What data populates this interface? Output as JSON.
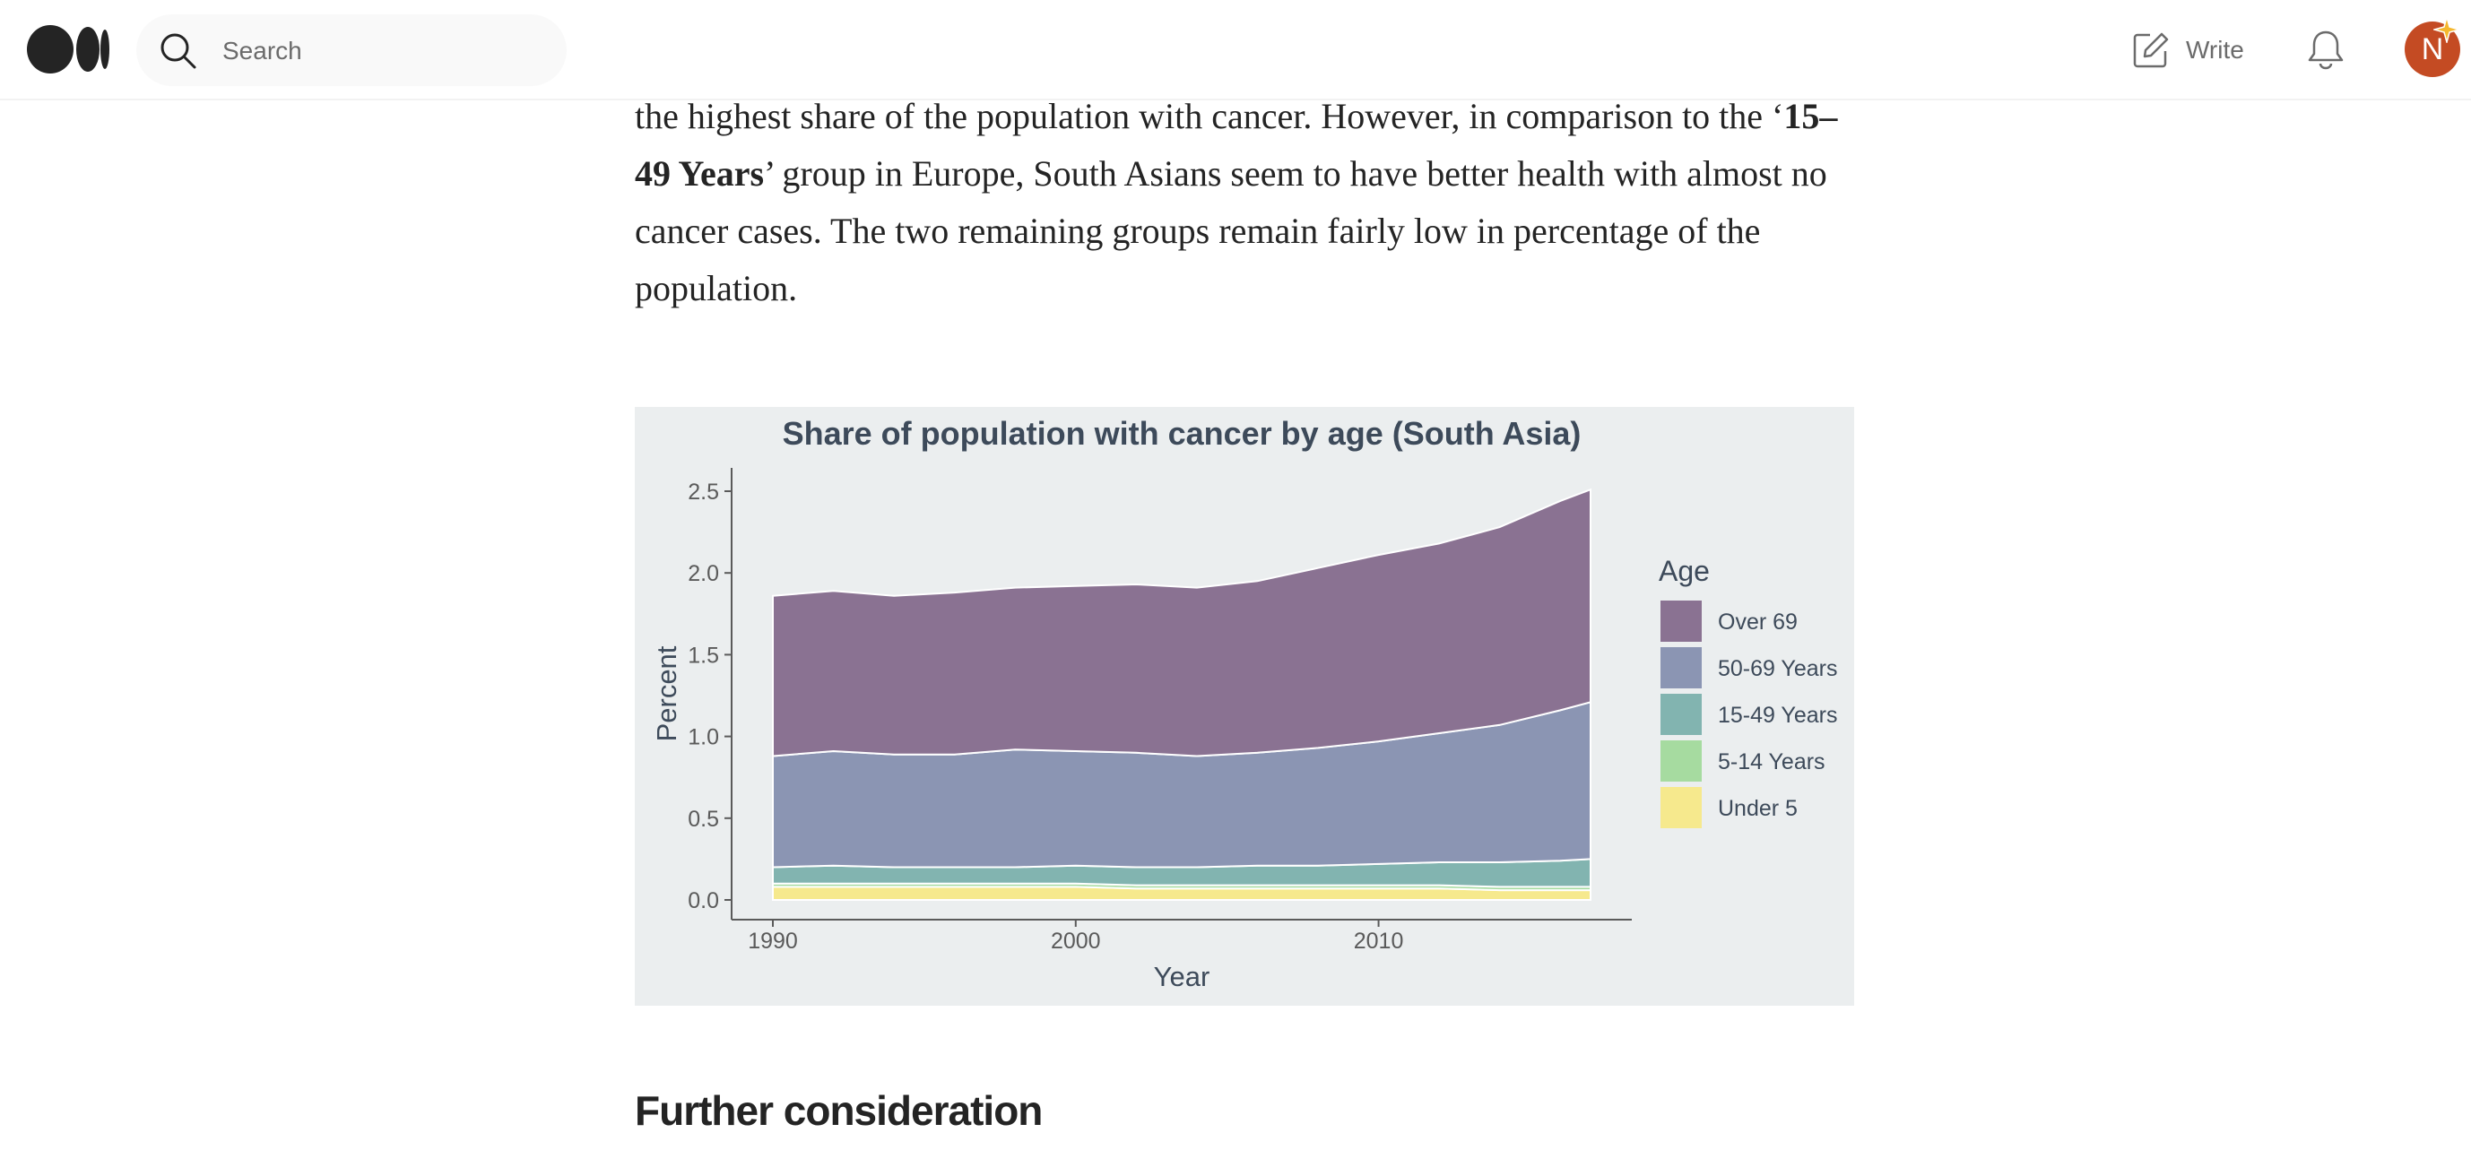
{
  "header": {
    "search_placeholder": "Search",
    "write_label": "Write",
    "avatar_initial": "N",
    "icons": [
      "medium-logo-icon",
      "search-icon",
      "write-icon",
      "bell-icon",
      "sparkle-icon"
    ]
  },
  "article": {
    "paragraph": {
      "part1": "the highest share of the population with cancer. However, in comparison to the ‘",
      "bold": "15–49 Years",
      "part2": "’ group in Europe, South Asians seem to have better health with almost no cancer cases. The two remaining groups remain fairly low in percentage of the population."
    },
    "next_heading": "Further consideration"
  },
  "chart_data": {
    "type": "area",
    "stacked": true,
    "title": "Share of population with cancer by age (South Asia)",
    "xlabel": "Year",
    "ylabel": "Percent",
    "xlim": [
      1990,
      2017
    ],
    "ylim": [
      0,
      2.5
    ],
    "xticks": [
      1990,
      2000,
      2010
    ],
    "yticks": [
      0.0,
      0.5,
      1.0,
      1.5,
      2.0,
      2.5
    ],
    "ytick_labels": [
      "0.0",
      "0.5",
      "1.0",
      "1.5",
      "2.0",
      "2.5"
    ],
    "grid": false,
    "legend": {
      "title": "Age",
      "position": "right"
    },
    "x": [
      1990,
      1992,
      1994,
      1996,
      1998,
      2000,
      2002,
      2004,
      2006,
      2008,
      2010,
      2012,
      2014,
      2016,
      2017
    ],
    "series": [
      {
        "name": "Under 5",
        "color": "#f6e98d",
        "values": [
          0.08,
          0.08,
          0.08,
          0.08,
          0.08,
          0.08,
          0.07,
          0.07,
          0.07,
          0.07,
          0.07,
          0.07,
          0.06,
          0.06,
          0.06
        ]
      },
      {
        "name": "5-14 Years",
        "color": "#a6dba0",
        "values": [
          0.02,
          0.02,
          0.02,
          0.02,
          0.02,
          0.02,
          0.02,
          0.02,
          0.02,
          0.02,
          0.02,
          0.02,
          0.02,
          0.02,
          0.02
        ]
      },
      {
        "name": "15-49 Years",
        "color": "#82b4b0",
        "values": [
          0.1,
          0.11,
          0.1,
          0.1,
          0.1,
          0.11,
          0.11,
          0.11,
          0.12,
          0.12,
          0.13,
          0.14,
          0.15,
          0.16,
          0.17
        ]
      },
      {
        "name": "50-69 Years",
        "color": "#8b95b3",
        "values": [
          0.68,
          0.7,
          0.69,
          0.69,
          0.72,
          0.7,
          0.7,
          0.68,
          0.69,
          0.72,
          0.75,
          0.79,
          0.84,
          0.92,
          0.96
        ]
      },
      {
        "name": "Over 69",
        "color": "#8a7292",
        "values": [
          0.98,
          0.98,
          0.97,
          0.99,
          0.99,
          1.01,
          1.03,
          1.03,
          1.05,
          1.1,
          1.14,
          1.16,
          1.21,
          1.28,
          1.3
        ]
      }
    ]
  },
  "colors": {
    "avatar": "#c44b23",
    "text": "#242424",
    "muted": "#6b6b6b",
    "figure_bg": "#ebeeef"
  }
}
